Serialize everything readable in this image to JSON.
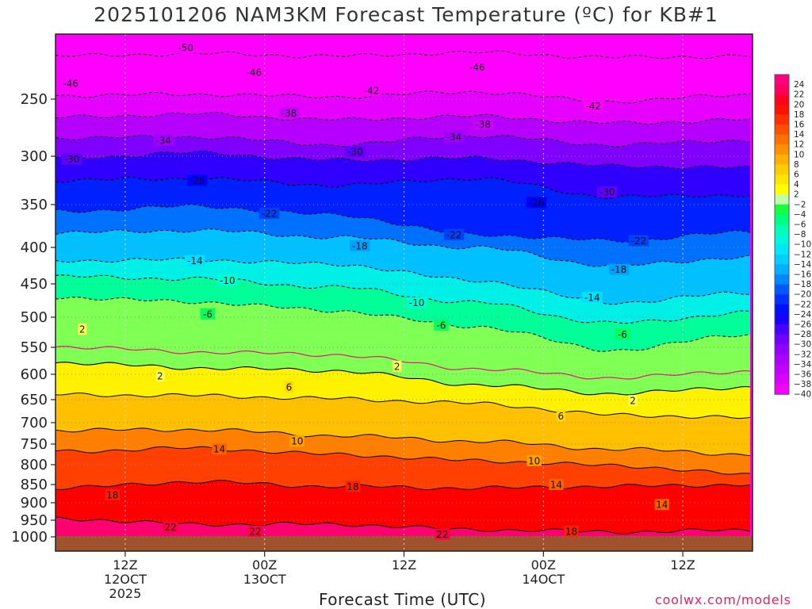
{
  "title": "2025101206 NAM3KM Forecast Temperature (ºC) for KB#1",
  "credit": "coolwx.com/models",
  "chart_data": {
    "type": "heatmap",
    "title": "2025101206 NAM3KM Forecast Temperature (ºC) for KB#1",
    "xlabel": "Forecast Time (UTC)",
    "ylabel": "",
    "y_ticks": [
      250,
      300,
      350,
      400,
      450,
      500,
      550,
      600,
      650,
      700,
      750,
      800,
      850,
      900,
      950,
      1000
    ],
    "x_ticks": [
      {
        "hour": 6,
        "label": [
          "12Z",
          "12OCT",
          "2025"
        ]
      },
      {
        "hour": 18,
        "label": [
          "00Z",
          "13OCT"
        ]
      },
      {
        "hour": 30,
        "label": [
          "12Z"
        ]
      },
      {
        "hour": 42,
        "label": [
          "00Z",
          "14OCT"
        ]
      },
      {
        "hour": 54,
        "label": [
          "12Z"
        ]
      }
    ],
    "x_range_hours": [
      0,
      60
    ],
    "y_range_hpa": [
      200,
      1025
    ],
    "grid": "dotted",
    "colorbar": {
      "levels": [
        24,
        22,
        20,
        18,
        16,
        14,
        12,
        10,
        8,
        6,
        4,
        2,
        -2,
        -4,
        -6,
        -8,
        -10,
        -12,
        -14,
        -16,
        -18,
        -20,
        -22,
        -24,
        -26,
        -28,
        -30,
        -32,
        -34,
        -36,
        -38,
        -40
      ],
      "labels": [
        "24",
        "22",
        "20",
        "18",
        "16",
        "14",
        "12",
        "10",
        "8",
        "6",
        "4",
        "2",
        "−2",
        "−4",
        "−6",
        "−8",
        "−10",
        "−12",
        "−14",
        "−16",
        "−18",
        "−20",
        "−22",
        "−24",
        "−26",
        "−28",
        "−30",
        "−32",
        "−34",
        "−36",
        "−38",
        "−40"
      ]
    },
    "isotherms": [
      {
        "value": -46,
        "pressure": [
          215,
          213,
          215,
          212,
          216,
          215
        ]
      },
      {
        "value": -42,
        "pressure": [
          247,
          246,
          248,
          244,
          252,
          246
        ]
      },
      {
        "value": -38,
        "pressure": [
          266,
          263,
          268,
          265,
          271,
          268
        ]
      },
      {
        "value": -34,
        "pressure": [
          284,
          283,
          290,
          282,
          290,
          286
        ]
      },
      {
        "value": -30,
        "pressure": [
          302,
          297,
          304,
          302,
          310,
          312
        ]
      },
      {
        "value": -26,
        "pressure": [
          325,
          323,
          330,
          323,
          342,
          340
        ]
      },
      {
        "value": -22,
        "pressure": [
          358,
          352,
          362,
          385,
          392,
          382
        ]
      },
      {
        "value": -18,
        "pressure": [
          383,
          380,
          388,
          400,
          425,
          413
        ]
      },
      {
        "value": -14,
        "pressure": [
          418,
          417,
          423,
          445,
          478,
          463
        ]
      },
      {
        "value": -10,
        "pressure": [
          440,
          443,
          455,
          478,
          510,
          493
        ]
      },
      {
        "value": -6,
        "pressure": [
          470,
          477,
          490,
          515,
          555,
          528
        ]
      },
      {
        "value": 2,
        "pressure": [
          578,
          588,
          593,
          620,
          638,
          625
        ]
      },
      {
        "value": 6,
        "pressure": [
          640,
          642,
          648,
          658,
          683,
          690
        ]
      },
      {
        "value": 10,
        "pressure": [
          718,
          716,
          730,
          743,
          762,
          775
        ]
      },
      {
        "value": 14,
        "pressure": [
          768,
          760,
          775,
          790,
          802,
          825
        ]
      },
      {
        "value": 18,
        "pressure": [
          860,
          843,
          855,
          860,
          855,
          850
        ]
      },
      {
        "value": 22,
        "pressure": [
          945,
          962,
          962,
          978,
          985,
          980
        ]
      }
    ],
    "isotherm_labels": [
      {
        "text": "-50",
        "h": 11.2,
        "p": 208
      },
      {
        "text": "-46",
        "h": 17.1,
        "p": 228
      },
      {
        "text": "-46",
        "h": 36.3,
        "p": 224
      },
      {
        "text": "-46",
        "h": 1.3,
        "p": 237
      },
      {
        "text": "-42",
        "h": 27.2,
        "p": 243
      },
      {
        "text": "-42",
        "h": 46.3,
        "p": 256
      },
      {
        "text": "-38",
        "h": 20.1,
        "p": 262
      },
      {
        "text": "-38",
        "h": 36.8,
        "p": 272
      },
      {
        "text": "-34",
        "h": 9.3,
        "p": 286
      },
      {
        "text": "-34",
        "h": 34.3,
        "p": 283
      },
      {
        "text": "-30",
        "h": 1.4,
        "p": 303
      },
      {
        "text": "-30",
        "h": 25.8,
        "p": 296
      },
      {
        "text": "-30",
        "h": 47.5,
        "p": 337
      },
      {
        "text": "-26",
        "h": 12.2,
        "p": 325
      },
      {
        "text": "-26",
        "h": 41.4,
        "p": 348
      },
      {
        "text": "-22",
        "h": 18.4,
        "p": 360
      },
      {
        "text": "-22",
        "h": 34.3,
        "p": 385
      },
      {
        "text": "-22",
        "h": 50.2,
        "p": 392
      },
      {
        "text": "-18",
        "h": 26.2,
        "p": 398
      },
      {
        "text": "-18",
        "h": 48.5,
        "p": 430
      },
      {
        "text": "-14",
        "h": 12.0,
        "p": 418
      },
      {
        "text": "-14",
        "h": 46.2,
        "p": 470
      },
      {
        "text": "-10",
        "h": 14.8,
        "p": 445
      },
      {
        "text": "-10",
        "h": 31.1,
        "p": 478
      },
      {
        "text": "-6",
        "h": 13.1,
        "p": 495
      },
      {
        "text": "-6",
        "h": 33.2,
        "p": 513
      },
      {
        "text": "-6",
        "h": 48.8,
        "p": 528
      },
      {
        "text": "2",
        "h": 2.3,
        "p": 520
      },
      {
        "text": "2",
        "h": 29.4,
        "p": 585
      },
      {
        "text": "2",
        "h": 9.0,
        "p": 603
      },
      {
        "text": "2",
        "h": 49.7,
        "p": 652
      },
      {
        "text": "6",
        "h": 20.1,
        "p": 625
      },
      {
        "text": "6",
        "h": 43.5,
        "p": 685
      },
      {
        "text": "10",
        "h": 20.8,
        "p": 743
      },
      {
        "text": "10",
        "h": 41.2,
        "p": 790
      },
      {
        "text": "14",
        "h": 14.1,
        "p": 762
      },
      {
        "text": "14",
        "h": 43.1,
        "p": 850
      },
      {
        "text": "14",
        "h": 52.2,
        "p": 905
      },
      {
        "text": "18",
        "h": 4.9,
        "p": 878
      },
      {
        "text": "18",
        "h": 25.6,
        "p": 855
      },
      {
        "text": "18",
        "h": 44.4,
        "p": 983
      },
      {
        "text": "22",
        "h": 9.9,
        "p": 970
      },
      {
        "text": "22",
        "h": 17.2,
        "p": 983
      },
      {
        "text": "22",
        "h": 33.3,
        "p": 992
      }
    ]
  }
}
